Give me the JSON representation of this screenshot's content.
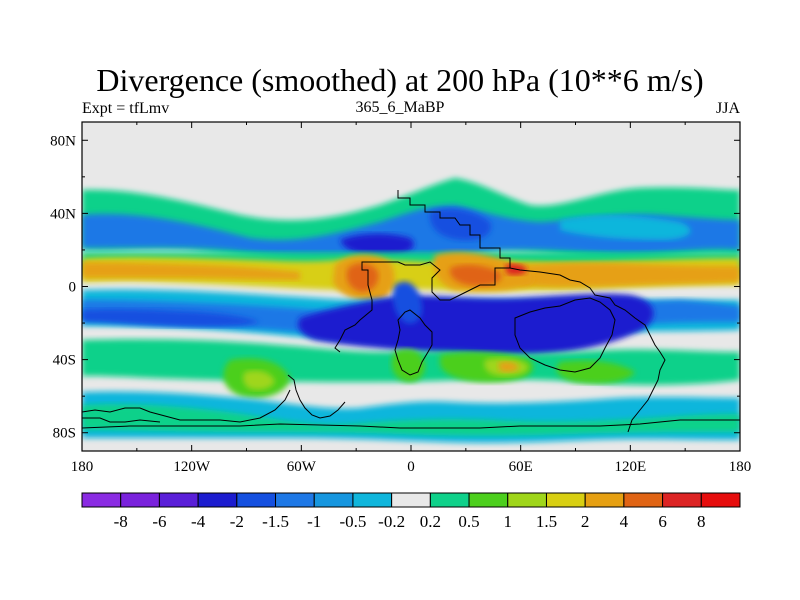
{
  "title": "Divergence (smoothed) at 200 hPa (10**6 m/s)",
  "subtitle_left": "Expt = tfLmv",
  "subtitle_center": "365_6_MaBP",
  "subtitle_right": "JJA",
  "map": {
    "type": "contour-fill",
    "projection": "cylindrical-equidistant",
    "lon_range": [
      -180,
      180
    ],
    "lat_range": [
      -90,
      90
    ],
    "x_ticks": [
      {
        "lon": -180,
        "label": "180"
      },
      {
        "lon": -120,
        "label": "120W"
      },
      {
        "lon": -60,
        "label": "60W"
      },
      {
        "lon": 0,
        "label": "0"
      },
      {
        "lon": 60,
        "label": "60E"
      },
      {
        "lon": 120,
        "label": "120E"
      },
      {
        "lon": 180,
        "label": "180"
      }
    ],
    "y_ticks": [
      {
        "lat": 80,
        "label": "80N"
      },
      {
        "lat": 40,
        "label": "40N"
      },
      {
        "lat": 0,
        "label": "0"
      },
      {
        "lat": -40,
        "label": "40S"
      },
      {
        "lat": -80,
        "label": "80S"
      }
    ]
  },
  "colorbar": {
    "levels": [
      "-8",
      "-6",
      "-4",
      "-2",
      "-1.5",
      "-1",
      "-0.5",
      "-0.2",
      "0.2",
      "0.5",
      "1",
      "1.5",
      "2",
      "4",
      "6",
      "8"
    ],
    "colors": [
      "#8a2be2",
      "#7a22dc",
      "#5a1fd8",
      "#1c1ccf",
      "#1550e0",
      "#1e78e6",
      "#1696df",
      "#10b6dc",
      "#e8e8e8",
      "#0fd18a",
      "#4ccf1d",
      "#9fd61a",
      "#d8cf12",
      "#e6a012",
      "#e06414",
      "#dc2424",
      "#e60d0d"
    ]
  },
  "colors": {
    "background": "#ffffff",
    "neutral": "#e8e8e8",
    "frame": "#000000",
    "coast": "#000000"
  }
}
